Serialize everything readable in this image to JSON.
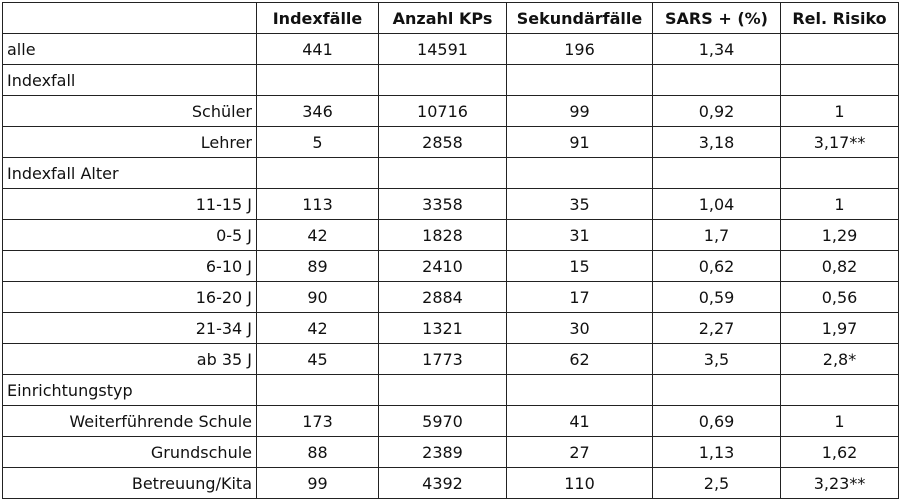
{
  "headers": [
    "",
    "Indexfälle",
    "Anzahl KPs",
    "Sekundärfälle",
    "SARS + (%)",
    "Rel. Risiko"
  ],
  "rows": [
    {
      "label": "alle",
      "type": "group",
      "values": [
        "441",
        "14591",
        "196",
        "1,34",
        ""
      ]
    },
    {
      "label": "Indexfall",
      "type": "group",
      "values": [
        "",
        "",
        "",
        "",
        ""
      ]
    },
    {
      "label": "Schüler",
      "type": "sub",
      "values": [
        "346",
        "10716",
        "99",
        "0,92",
        "1"
      ]
    },
    {
      "label": "Lehrer",
      "type": "sub",
      "values": [
        "5",
        "2858",
        "91",
        "3,18",
        "3,17**"
      ]
    },
    {
      "label": "Indexfall Alter",
      "type": "group",
      "values": [
        "",
        "",
        "",
        "",
        ""
      ]
    },
    {
      "label": "11-15 J",
      "type": "sub",
      "values": [
        "113",
        "3358",
        "35",
        "1,04",
        "1"
      ]
    },
    {
      "label": "0-5 J",
      "type": "sub",
      "values": [
        "42",
        "1828",
        "31",
        "1,7",
        "1,29"
      ]
    },
    {
      "label": "6-10 J",
      "type": "sub",
      "values": [
        "89",
        "2410",
        "15",
        "0,62",
        "0,82"
      ]
    },
    {
      "label": "16-20 J",
      "type": "sub",
      "values": [
        "90",
        "2884",
        "17",
        "0,59",
        "0,56"
      ]
    },
    {
      "label": "21-34 J",
      "type": "sub",
      "values": [
        "42",
        "1321",
        "30",
        "2,27",
        "1,97"
      ]
    },
    {
      "label": "ab 35 J",
      "type": "sub",
      "values": [
        "45",
        "1773",
        "62",
        "3,5",
        "2,8*"
      ]
    },
    {
      "label": "Einrichtungstyp",
      "type": "group",
      "values": [
        "",
        "",
        "",
        "",
        ""
      ]
    },
    {
      "label": "Weiterführende Schule",
      "type": "sub",
      "values": [
        "173",
        "5970",
        "41",
        "0,69",
        "1"
      ]
    },
    {
      "label": "Grundschule",
      "type": "sub",
      "values": [
        "88",
        "2389",
        "27",
        "1,13",
        "1,62"
      ]
    },
    {
      "label": "Betreuung/Kita",
      "type": "sub",
      "values": [
        "99",
        "4392",
        "110",
        "2,5",
        "3,23**"
      ]
    }
  ]
}
